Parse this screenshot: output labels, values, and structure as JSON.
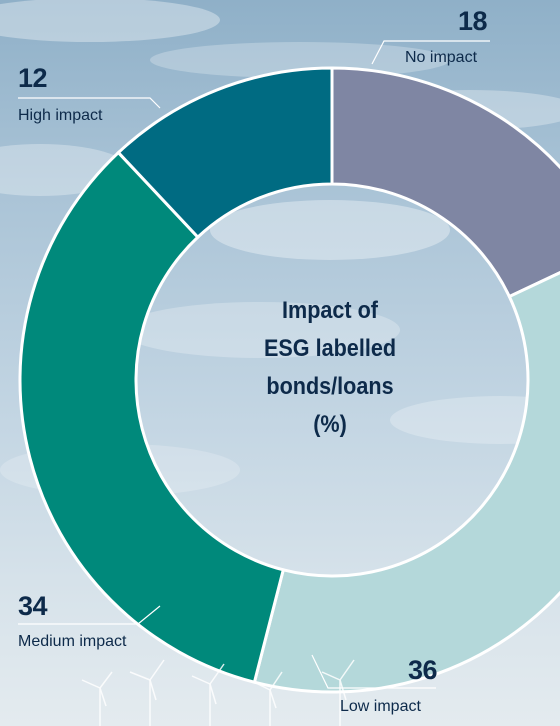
{
  "chart_data": {
    "type": "donut",
    "title_lines": [
      "Impact of",
      "ESG labelled",
      "bonds/loans",
      "(%)"
    ],
    "categories": [
      "No impact",
      "Low impact",
      "Medium impact",
      "High impact"
    ],
    "values": [
      18,
      36,
      34,
      12
    ],
    "colors": [
      "#7f86a3",
      "#b4d8da",
      "#00897b",
      "#006b82"
    ],
    "legend_placement": "labels-on-slices"
  },
  "labels": {
    "no_impact": {
      "value": "18",
      "label": "No impact"
    },
    "low_impact": {
      "value": "36",
      "label": "Low impact"
    },
    "medium_impact": {
      "value": "34",
      "label": "Medium impact"
    },
    "high_impact": {
      "value": "12",
      "label": "High impact"
    }
  }
}
